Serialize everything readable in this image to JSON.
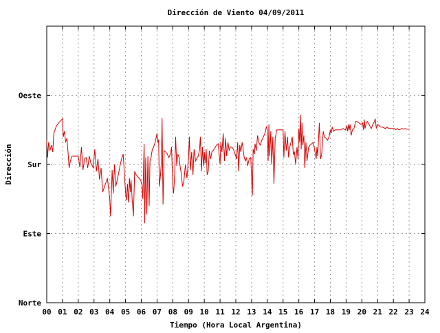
{
  "chart_data": {
    "type": "line",
    "title": "Dirección de Viento 04/09/2011",
    "xlabel": "Tiempo (Hora Local Argentina)",
    "ylabel": "Dirección",
    "xlim": [
      0,
      24
    ],
    "ylim": [
      0,
      400
    ],
    "x_ticks": [
      0,
      1,
      2,
      3,
      4,
      5,
      6,
      7,
      8,
      9,
      10,
      11,
      12,
      13,
      14,
      15,
      16,
      17,
      18,
      19,
      20,
      21,
      22,
      23,
      24
    ],
    "x_tick_labels": [
      "00",
      "01",
      "02",
      "03",
      "04",
      "05",
      "06",
      "07",
      "08",
      "09",
      "10",
      "11",
      "12",
      "13",
      "14",
      "15",
      "16",
      "17",
      "18",
      "19",
      "20",
      "21",
      "22",
      "23",
      "24"
    ],
    "y_ticks": [
      0,
      100,
      200,
      300
    ],
    "y_tick_labels": [
      "Norte",
      "Este",
      "Sur",
      "Oeste"
    ],
    "grid": true,
    "line_color": "#d40000",
    "series": [
      {
        "values": [
          [
            0.0,
            235
          ],
          [
            0.05,
            210
          ],
          [
            0.12,
            232
          ],
          [
            0.2,
            220
          ],
          [
            0.3,
            228
          ],
          [
            0.38,
            218
          ],
          [
            0.45,
            245
          ],
          [
            0.6,
            255
          ],
          [
            0.75,
            260
          ],
          [
            1.0,
            266
          ],
          [
            1.05,
            240
          ],
          [
            1.12,
            248
          ],
          [
            1.2,
            232
          ],
          [
            1.28,
            238
          ],
          [
            1.35,
            218
          ],
          [
            1.42,
            195
          ],
          [
            1.5,
            205
          ],
          [
            1.6,
            212
          ],
          [
            1.75,
            212
          ],
          [
            1.9,
            212
          ],
          [
            2.0,
            212
          ],
          [
            2.1,
            196
          ],
          [
            2.2,
            225
          ],
          [
            2.3,
            192
          ],
          [
            2.4,
            208
          ],
          [
            2.5,
            210
          ],
          [
            2.6,
            195
          ],
          [
            2.7,
            212
          ],
          [
            2.8,
            202
          ],
          [
            2.95,
            195
          ],
          [
            3.05,
            222
          ],
          [
            3.15,
            190
          ],
          [
            3.25,
            208
          ],
          [
            3.35,
            178
          ],
          [
            3.45,
            195
          ],
          [
            3.55,
            160
          ],
          [
            3.7,
            170
          ],
          [
            3.85,
            180
          ],
          [
            4.0,
            150
          ],
          [
            4.05,
            125
          ],
          [
            4.15,
            192
          ],
          [
            4.22,
            158
          ],
          [
            4.3,
            200
          ],
          [
            4.38,
            168
          ],
          [
            4.45,
            175
          ],
          [
            4.55,
            186
          ],
          [
            4.65,
            198
          ],
          [
            4.75,
            208
          ],
          [
            4.85,
            215
          ],
          [
            5.0,
            160
          ],
          [
            5.05,
            148
          ],
          [
            5.12,
            172
          ],
          [
            5.18,
            145
          ],
          [
            5.25,
            180
          ],
          [
            5.3,
            160
          ],
          [
            5.35,
            178
          ],
          [
            5.42,
            150
          ],
          [
            5.5,
            125
          ],
          [
            5.58,
            190
          ],
          [
            5.65,
            186
          ],
          [
            5.75,
            183
          ],
          [
            5.85,
            180
          ],
          [
            5.95,
            178
          ],
          [
            6.05,
            170
          ],
          [
            6.1,
            150
          ],
          [
            6.18,
            230
          ],
          [
            6.22,
            115
          ],
          [
            6.28,
            210
          ],
          [
            6.35,
            128
          ],
          [
            6.42,
            212
          ],
          [
            6.5,
            140
          ],
          [
            6.55,
            205
          ],
          [
            6.62,
            210
          ],
          [
            6.7,
            222
          ],
          [
            6.78,
            225
          ],
          [
            6.88,
            232
          ],
          [
            7.0,
            245
          ],
          [
            7.05,
            232
          ],
          [
            7.1,
            236
          ],
          [
            7.15,
            168
          ],
          [
            7.22,
            185
          ],
          [
            7.28,
            205
          ],
          [
            7.32,
            267
          ],
          [
            7.38,
            142
          ],
          [
            7.45,
            220
          ],
          [
            7.55,
            218
          ],
          [
            7.65,
            215
          ],
          [
            7.75,
            210
          ],
          [
            7.85,
            215
          ],
          [
            7.92,
            225
          ],
          [
            8.0,
            170
          ],
          [
            8.05,
            158
          ],
          [
            8.12,
            185
          ],
          [
            8.18,
            240
          ],
          [
            8.25,
            198
          ],
          [
            8.32,
            215
          ],
          [
            8.4,
            210
          ],
          [
            8.48,
            195
          ],
          [
            8.55,
            185
          ],
          [
            8.62,
            168
          ],
          [
            8.7,
            175
          ],
          [
            8.8,
            200
          ],
          [
            8.9,
            180
          ],
          [
            9.0,
            210
          ],
          [
            9.05,
            240
          ],
          [
            9.12,
            192
          ],
          [
            9.2,
            218
          ],
          [
            9.28,
            185
          ],
          [
            9.35,
            222
          ],
          [
            9.45,
            205
          ],
          [
            9.55,
            210
          ],
          [
            9.62,
            212
          ],
          [
            9.7,
            222
          ],
          [
            9.75,
            240
          ],
          [
            9.82,
            190
          ],
          [
            9.88,
            225
          ],
          [
            9.95,
            198
          ],
          [
            10.0,
            218
          ],
          [
            10.05,
            202
          ],
          [
            10.12,
            222
          ],
          [
            10.18,
            185
          ],
          [
            10.25,
            190
          ],
          [
            10.32,
            220
          ],
          [
            10.4,
            208
          ],
          [
            10.48,
            218
          ],
          [
            10.55,
            220
          ],
          [
            10.62,
            222
          ],
          [
            10.7,
            225
          ],
          [
            10.78,
            228
          ],
          [
            10.88,
            230
          ],
          [
            11.0,
            200
          ],
          [
            11.05,
            232
          ],
          [
            11.12,
            218
          ],
          [
            11.2,
            245
          ],
          [
            11.28,
            205
          ],
          [
            11.35,
            238
          ],
          [
            11.42,
            212
          ],
          [
            11.5,
            232
          ],
          [
            11.58,
            220
          ],
          [
            11.65,
            225
          ],
          [
            11.75,
            225
          ],
          [
            11.85,
            222
          ],
          [
            11.95,
            215
          ],
          [
            12.05,
            208
          ],
          [
            12.12,
            232
          ],
          [
            12.18,
            190
          ],
          [
            12.25,
            228
          ],
          [
            12.32,
            218
          ],
          [
            12.4,
            232
          ],
          [
            12.45,
            225
          ],
          [
            12.52,
            212
          ],
          [
            12.6,
            205
          ],
          [
            12.68,
            210
          ],
          [
            12.75,
            198
          ],
          [
            12.85,
            208
          ],
          [
            12.95,
            210
          ],
          [
            13.0,
            180
          ],
          [
            13.05,
            155
          ],
          [
            13.1,
            222
          ],
          [
            13.18,
            215
          ],
          [
            13.22,
            230
          ],
          [
            13.3,
            220
          ],
          [
            13.38,
            242
          ],
          [
            13.45,
            232
          ],
          [
            13.55,
            228
          ],
          [
            13.65,
            235
          ],
          [
            13.75,
            240
          ],
          [
            13.85,
            245
          ],
          [
            13.95,
            255
          ],
          [
            14.0,
            250
          ],
          [
            14.05,
            205
          ],
          [
            14.1,
            258
          ],
          [
            14.15,
            212
          ],
          [
            14.22,
            248
          ],
          [
            14.28,
            200
          ],
          [
            14.35,
            240
          ],
          [
            14.42,
            172
          ],
          [
            14.5,
            238
          ],
          [
            14.6,
            250
          ],
          [
            14.72,
            250
          ],
          [
            14.85,
            250
          ],
          [
            15.0,
            250
          ],
          [
            15.05,
            210
          ],
          [
            15.12,
            248
          ],
          [
            15.2,
            220
          ],
          [
            15.28,
            240
          ],
          [
            15.35,
            210
          ],
          [
            15.42,
            225
          ],
          [
            15.5,
            232
          ],
          [
            15.58,
            240
          ],
          [
            15.65,
            215
          ],
          [
            15.72,
            218
          ],
          [
            15.8,
            200
          ],
          [
            15.88,
            225
          ],
          [
            15.95,
            208
          ],
          [
            16.0,
            252
          ],
          [
            16.05,
            232
          ],
          [
            16.1,
            272
          ],
          [
            16.15,
            222
          ],
          [
            16.2,
            260
          ],
          [
            16.25,
            228
          ],
          [
            16.32,
            242
          ],
          [
            16.38,
            195
          ],
          [
            16.45,
            232
          ],
          [
            16.52,
            205
          ],
          [
            16.62,
            225
          ],
          [
            16.72,
            228
          ],
          [
            16.82,
            230
          ],
          [
            16.92,
            232
          ],
          [
            17.05,
            215
          ],
          [
            17.1,
            208
          ],
          [
            17.15,
            225
          ],
          [
            17.2,
            212
          ],
          [
            17.3,
            260
          ],
          [
            17.38,
            208
          ],
          [
            17.45,
            215
          ],
          [
            17.55,
            248
          ],
          [
            17.62,
            240
          ],
          [
            17.72,
            238
          ],
          [
            17.82,
            235
          ],
          [
            17.92,
            240
          ],
          [
            18.0,
            250
          ],
          [
            18.05,
            245
          ],
          [
            18.12,
            254
          ],
          [
            18.2,
            248
          ],
          [
            18.3,
            250
          ],
          [
            18.4,
            250
          ],
          [
            18.5,
            250
          ],
          [
            18.65,
            250
          ],
          [
            18.8,
            252
          ],
          [
            18.95,
            250
          ],
          [
            19.05,
            255
          ],
          [
            19.1,
            248
          ],
          [
            19.15,
            258
          ],
          [
            19.2,
            250
          ],
          [
            19.25,
            258
          ],
          [
            19.32,
            242
          ],
          [
            19.4,
            250
          ],
          [
            19.5,
            252
          ],
          [
            19.6,
            262
          ],
          [
            19.7,
            262
          ],
          [
            19.82,
            260
          ],
          [
            19.95,
            258
          ],
          [
            20.05,
            260
          ],
          [
            20.1,
            250
          ],
          [
            20.15,
            265
          ],
          [
            20.2,
            252
          ],
          [
            20.28,
            260
          ],
          [
            20.35,
            262
          ],
          [
            20.45,
            258
          ],
          [
            20.52,
            255
          ],
          [
            20.6,
            252
          ],
          [
            20.7,
            258
          ],
          [
            20.8,
            262
          ],
          [
            20.85,
            266
          ],
          [
            20.92,
            252
          ],
          [
            21.0,
            258
          ],
          [
            21.1,
            256
          ],
          [
            21.2,
            254
          ],
          [
            21.3,
            254
          ],
          [
            21.4,
            253
          ],
          [
            21.5,
            252
          ],
          [
            21.6,
            254
          ],
          [
            21.72,
            252
          ],
          [
            21.82,
            252
          ],
          [
            21.95,
            252
          ],
          [
            22.05,
            252
          ],
          [
            22.15,
            250
          ],
          [
            22.25,
            252
          ],
          [
            22.35,
            250
          ],
          [
            22.45,
            251
          ],
          [
            22.55,
            252
          ],
          [
            22.65,
            251
          ],
          [
            22.75,
            252
          ],
          [
            22.85,
            251
          ],
          [
            22.95,
            251
          ],
          [
            23.0,
            251
          ]
        ]
      }
    ]
  }
}
